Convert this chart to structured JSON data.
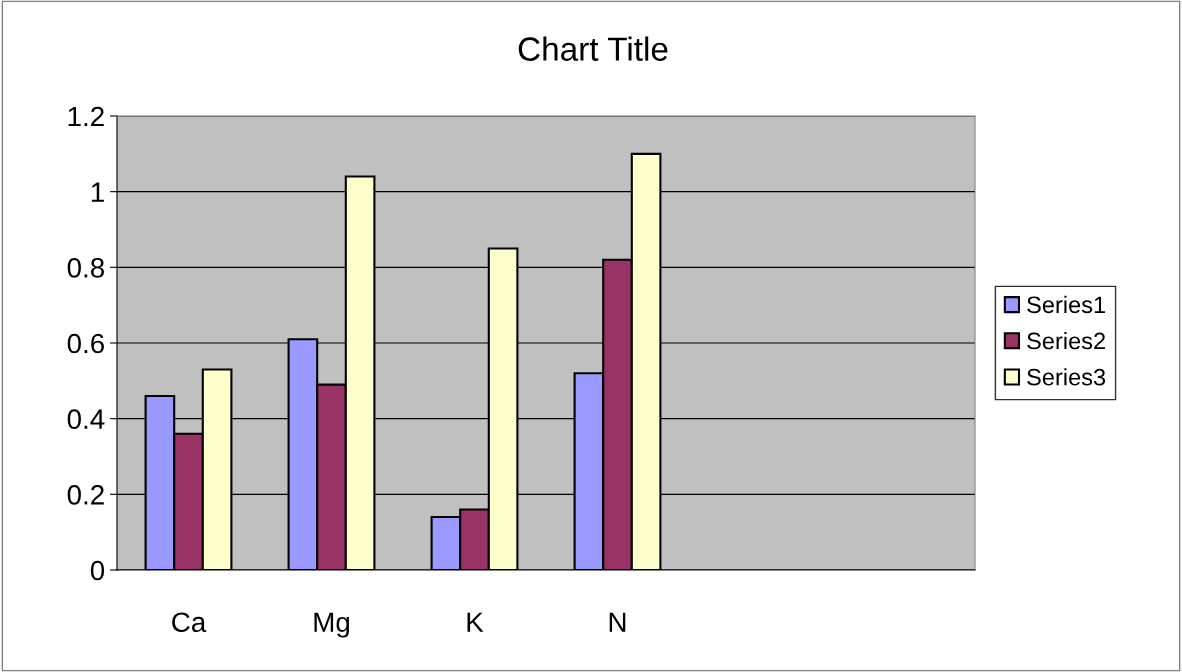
{
  "chart_data": {
    "type": "bar",
    "title": "Chart Title",
    "categories": [
      "Ca",
      "Mg",
      "K",
      "N",
      null,
      null
    ],
    "series": [
      {
        "name": "Series1",
        "color": "#9999ff",
        "values": [
          0.46,
          0.61,
          0.14,
          0.52,
          null,
          null
        ]
      },
      {
        "name": "Series2",
        "color": "#993366",
        "values": [
          0.36,
          0.49,
          0.16,
          0.82,
          null,
          null
        ]
      },
      {
        "name": "Series3",
        "color": "#ffffcc",
        "values": [
          0.53,
          1.04,
          0.85,
          1.1,
          null,
          null
        ]
      }
    ],
    "ylim": [
      0,
      1.2
    ],
    "yticks": [
      0,
      0.2,
      0.4,
      0.6,
      0.8,
      1,
      1.2
    ],
    "grid": "y",
    "legend": "right"
  }
}
